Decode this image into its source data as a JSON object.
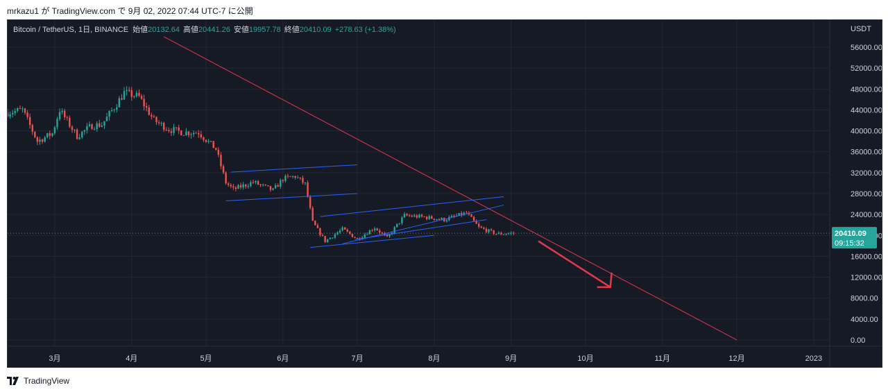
{
  "header": {
    "published_text": "mrkazu1 が TradingView.com で 9月 02, 2022 07:44 UTC-7 に公開"
  },
  "legend": {
    "symbol": "Bitcoin / TetherUS, 1日, BINANCE",
    "open_label": "始値",
    "open_value": "20132.64",
    "high_label": "高値",
    "high_value": "20441.26",
    "low_label": "安値",
    "low_value": "19957.78",
    "close_label": "終値",
    "close_value": "20410.09",
    "change": "+278.63 (+1.38%)"
  },
  "price_axis": {
    "currency": "USDT",
    "last_price": "20410.09",
    "countdown": "09:15:32"
  },
  "footer": {
    "brand": "TradingView"
  },
  "colors": {
    "background": "#161a25",
    "up": "#26a69a",
    "down": "#ef5350",
    "trendline_red": "#e5384d",
    "channel_blue": "#2962ff",
    "label_bg": "#26a69a"
  },
  "chart_data": {
    "type": "candlestick",
    "ylim": [
      0,
      58000
    ],
    "y_ticks": [
      "56000.00",
      "52000.00",
      "48000.00",
      "44000.00",
      "40000.00",
      "36000.00",
      "32000.00",
      "28000.00",
      "24000.00",
      "20000.00",
      "16000.00",
      "12000.00",
      "8000.00",
      "4000.00",
      "0.00"
    ],
    "x_ticks": [
      "3月",
      "4月",
      "5月",
      "6月",
      "7月",
      "8月",
      "9月",
      "10月",
      "11月",
      "12月",
      "2023"
    ],
    "grid": true,
    "price_path": [
      [
        "2022-02-10",
        43500
      ],
      [
        "2022-02-16",
        44000
      ],
      [
        "2022-02-22",
        38000
      ],
      [
        "2022-02-28",
        39500
      ],
      [
        "2022-03-03",
        44000
      ],
      [
        "2022-03-10",
        39000
      ],
      [
        "2022-03-16",
        41000
      ],
      [
        "2022-03-20",
        41200
      ],
      [
        "2022-03-25",
        44500
      ],
      [
        "2022-03-29",
        47300
      ],
      [
        "2022-04-04",
        46500
      ],
      [
        "2022-04-10",
        42000
      ],
      [
        "2022-04-16",
        40300
      ],
      [
        "2022-04-22",
        39700
      ],
      [
        "2022-04-28",
        39700
      ],
      [
        "2022-05-05",
        36500
      ],
      [
        "2022-05-09",
        30100
      ],
      [
        "2022-05-12",
        28800
      ],
      [
        "2022-05-20",
        30200
      ],
      [
        "2022-05-28",
        28600
      ],
      [
        "2022-06-01",
        30800
      ],
      [
        "2022-06-06",
        31300
      ],
      [
        "2022-06-10",
        29800
      ],
      [
        "2022-06-13",
        22500
      ],
      [
        "2022-06-18",
        18900
      ],
      [
        "2022-06-25",
        21200
      ],
      [
        "2022-07-01",
        19300
      ],
      [
        "2022-07-08",
        21500
      ],
      [
        "2022-07-13",
        19500
      ],
      [
        "2022-07-20",
        23800
      ],
      [
        "2022-07-28",
        23500
      ],
      [
        "2022-08-05",
        23000
      ],
      [
        "2022-08-14",
        24300
      ],
      [
        "2022-08-19",
        21500
      ],
      [
        "2022-08-26",
        20300
      ],
      [
        "2022-09-02",
        20410
      ]
    ],
    "annotations": {
      "descending_trendline": [
        [
          "2022-04-14",
          58000
        ],
        [
          "2022-12-01",
          0
        ]
      ],
      "channel_1_upper": [
        [
          "2022-05-11",
          32100
        ],
        [
          "2022-07-01",
          33500
        ]
      ],
      "channel_1_lower": [
        [
          "2022-05-09",
          26600
        ],
        [
          "2022-07-01",
          28000
        ]
      ],
      "channel_2_upper": [
        [
          "2022-06-16",
          23600
        ],
        [
          "2022-08-29",
          27400
        ]
      ],
      "channel_2_lower": [
        [
          "2022-06-12",
          17700
        ],
        [
          "2022-08-01",
          20000
        ]
      ],
      "wedge_line_1": [
        [
          "2022-06-25",
          18400
        ],
        [
          "2022-08-29",
          25800
        ]
      ],
      "wedge_line_2": [
        [
          "2022-06-30",
          19200
        ],
        [
          "2022-08-22",
          23000
        ]
      ],
      "arrow": [
        [
          "2022-09-12",
          18900
        ],
        [
          "2022-10-11",
          10100
        ]
      ]
    }
  }
}
